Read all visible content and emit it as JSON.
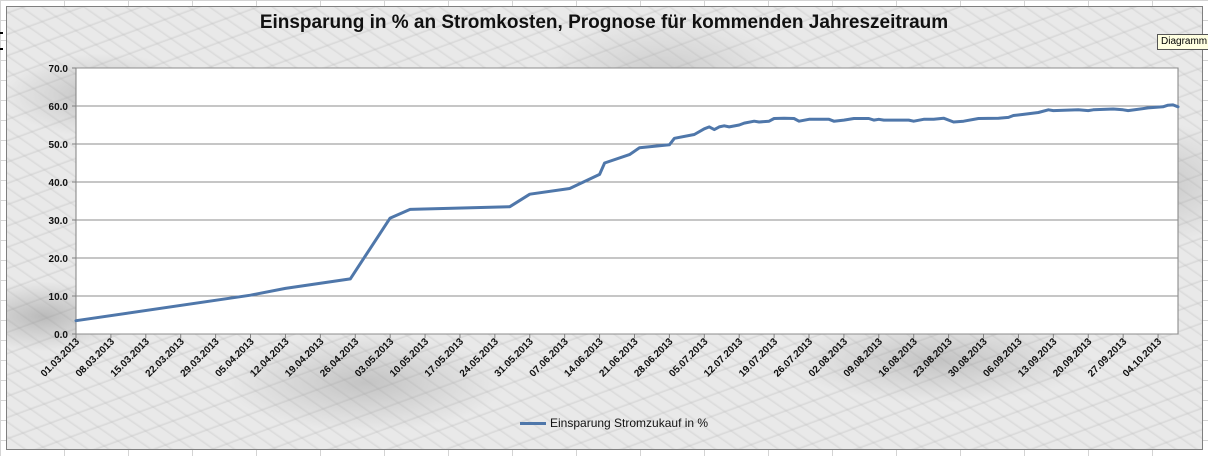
{
  "tooltip": "Diagramm",
  "chart_data": {
    "type": "line",
    "title": "Einsparung in % an Stromkosten, Prognose für kommenden Jahreszeitraum",
    "xlabel": "",
    "ylabel": "",
    "ylim": [
      0,
      70
    ],
    "y_ticks": [
      "0.0",
      "10.0",
      "20.0",
      "30.0",
      "40.0",
      "50.0",
      "60.0",
      "70.0"
    ],
    "x_range": [
      "2013-03-01",
      "2013-10-08"
    ],
    "x_tick_labels": [
      "01.03.2013",
      "08.03.2013",
      "15.03.2013",
      "22.03.2013",
      "29.03.2013",
      "05.04.2013",
      "12.04.2013",
      "19.04.2013",
      "26.04.2013",
      "03.05.2013",
      "10.05.2013",
      "17.05.2013",
      "24.05.2013",
      "31.05.2013",
      "07.06.2013",
      "14.06.2013",
      "21.06.2013",
      "28.06.2013",
      "05.07.2013",
      "12.07.2013",
      "19.07.2013",
      "26.07.2013",
      "02.08.2013",
      "09.08.2013",
      "16.08.2013",
      "23.08.2013",
      "30.08.2013",
      "06.09.2013",
      "13.09.2013",
      "20.09.2013",
      "27.09.2013",
      "04.10.2013"
    ],
    "grid": "horizontal",
    "legend_position": "bottom",
    "series": [
      {
        "name": "Einsparung Stromzukauf in %",
        "color": "#4f77aa",
        "points": [
          [
            "2013-03-01",
            3.5
          ],
          [
            "2013-04-05",
            10.2
          ],
          [
            "2013-04-12",
            12.0
          ],
          [
            "2013-04-25",
            14.5
          ],
          [
            "2013-05-03",
            30.5
          ],
          [
            "2013-05-07",
            32.8
          ],
          [
            "2013-05-27",
            33.5
          ],
          [
            "2013-05-31",
            36.8
          ],
          [
            "2013-06-08",
            38.3
          ],
          [
            "2013-06-14",
            42.0
          ],
          [
            "2013-06-15",
            45.0
          ],
          [
            "2013-06-20",
            47.2
          ],
          [
            "2013-06-22",
            49.0
          ],
          [
            "2013-06-28",
            49.8
          ],
          [
            "2013-06-29",
            51.5
          ],
          [
            "2013-07-03",
            52.5
          ],
          [
            "2013-07-05",
            54.0
          ],
          [
            "2013-07-06",
            54.5
          ],
          [
            "2013-07-07",
            53.8
          ],
          [
            "2013-07-08",
            54.5
          ],
          [
            "2013-07-09",
            54.8
          ],
          [
            "2013-07-10",
            54.5
          ],
          [
            "2013-07-12",
            55.0
          ],
          [
            "2013-07-13",
            55.5
          ],
          [
            "2013-07-15",
            56.0
          ],
          [
            "2013-07-16",
            55.8
          ],
          [
            "2013-07-18",
            56.0
          ],
          [
            "2013-07-19",
            56.7
          ],
          [
            "2013-07-21",
            56.8
          ],
          [
            "2013-07-23",
            56.7
          ],
          [
            "2013-07-24",
            56.0
          ],
          [
            "2013-07-26",
            56.5
          ],
          [
            "2013-07-30",
            56.5
          ],
          [
            "2013-07-31",
            56.0
          ],
          [
            "2013-08-02",
            56.3
          ],
          [
            "2013-08-04",
            56.7
          ],
          [
            "2013-08-07",
            56.7
          ],
          [
            "2013-08-08",
            56.3
          ],
          [
            "2013-08-09",
            56.5
          ],
          [
            "2013-08-10",
            56.3
          ],
          [
            "2013-08-15",
            56.3
          ],
          [
            "2013-08-16",
            56.0
          ],
          [
            "2013-08-18",
            56.5
          ],
          [
            "2013-08-20",
            56.5
          ],
          [
            "2013-08-22",
            56.8
          ],
          [
            "2013-08-24",
            55.8
          ],
          [
            "2013-08-26",
            56.0
          ],
          [
            "2013-08-29",
            56.7
          ],
          [
            "2013-09-02",
            56.8
          ],
          [
            "2013-09-04",
            57.0
          ],
          [
            "2013-09-05",
            57.5
          ],
          [
            "2013-09-07",
            57.8
          ],
          [
            "2013-09-10",
            58.3
          ],
          [
            "2013-09-12",
            59.0
          ],
          [
            "2013-09-13",
            58.8
          ],
          [
            "2013-09-18",
            59.0
          ],
          [
            "2013-09-20",
            58.8
          ],
          [
            "2013-09-21",
            59.0
          ],
          [
            "2013-09-25",
            59.2
          ],
          [
            "2013-09-27",
            59.0
          ],
          [
            "2013-09-28",
            58.8
          ],
          [
            "2013-10-02",
            59.5
          ],
          [
            "2013-10-05",
            59.8
          ],
          [
            "2013-10-06",
            60.2
          ],
          [
            "2013-10-07",
            60.3
          ],
          [
            "2013-10-08",
            59.8
          ]
        ]
      }
    ]
  }
}
